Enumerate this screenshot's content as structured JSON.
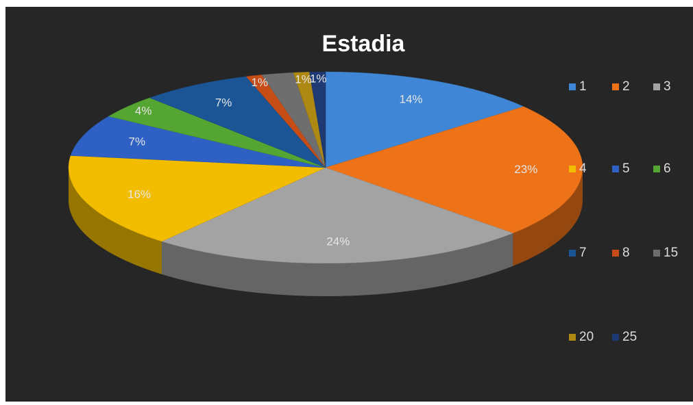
{
  "chart_data": {
    "type": "pie",
    "title": "Estadia",
    "categories": [
      "1",
      "2",
      "3",
      "4",
      "5",
      "6",
      "7",
      "8",
      "15",
      "20",
      "25"
    ],
    "values": [
      14,
      23,
      24,
      16,
      7,
      4,
      7,
      1,
      2,
      1,
      1
    ],
    "value_labels": [
      "14%",
      "23%",
      "24%",
      "16%",
      "7%",
      "4%",
      "7%",
      "1%",
      null,
      "1%",
      "1%"
    ],
    "colors": [
      "#3f87d6",
      "#ee7318",
      "#a3a3a3",
      "#f2bd00",
      "#2f60c4",
      "#55a532",
      "#1c5596",
      "#c64d16",
      "#6e6e6e",
      "#ad8812",
      "#1d3a74"
    ],
    "legend": "right"
  }
}
